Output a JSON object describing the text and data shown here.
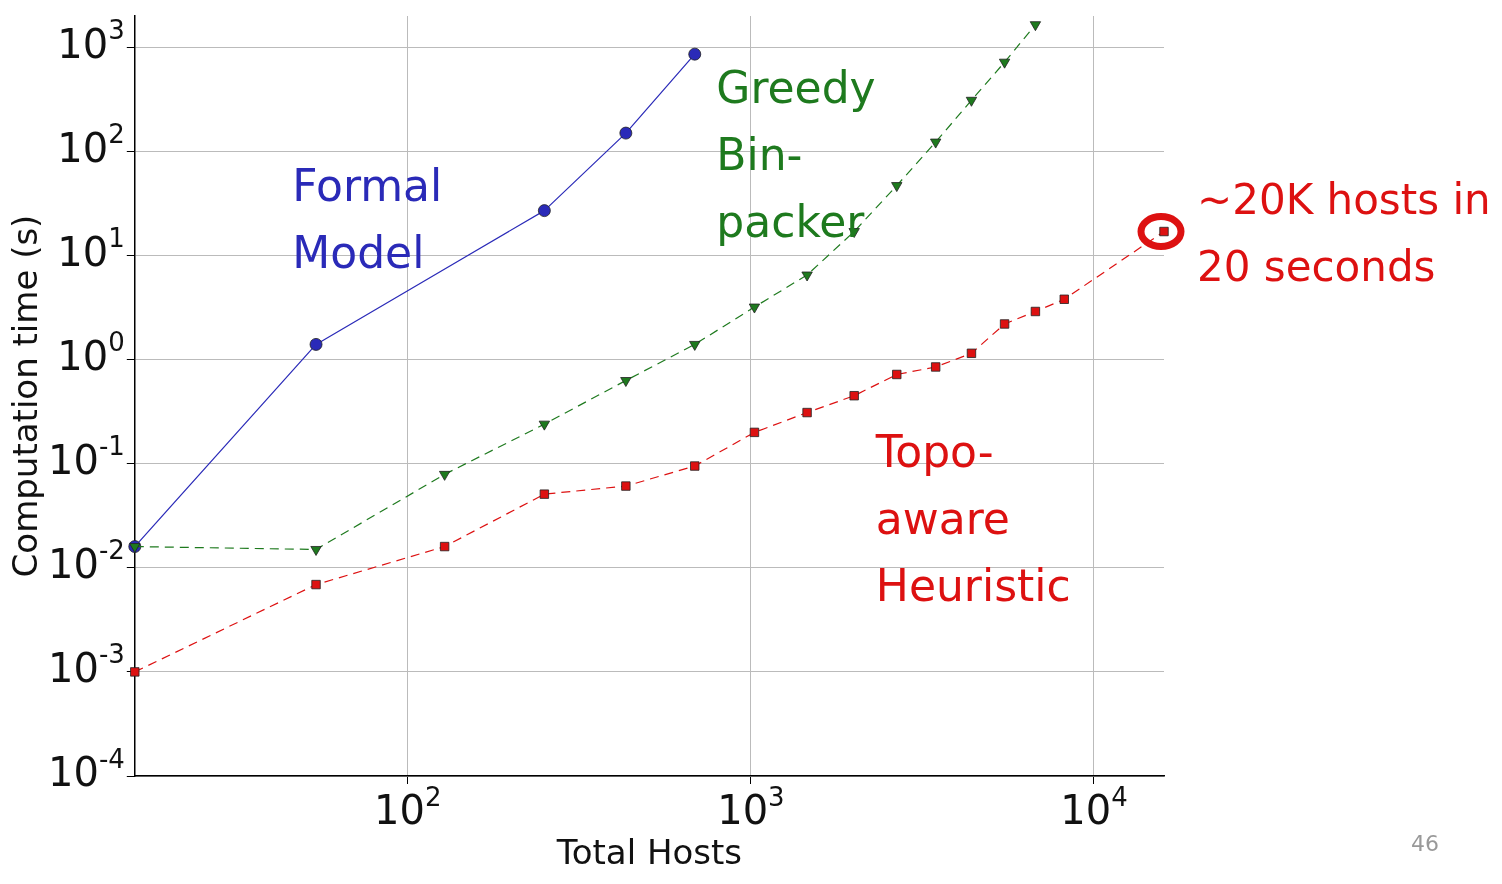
{
  "chart_data": {
    "type": "line",
    "xlabel": "Total Hosts",
    "ylabel": "Computation time (s)",
    "log": "xy",
    "grid": true,
    "legend": false,
    "xlim": [
      16,
      16000
    ],
    "xticks": [
      {
        "value": 100,
        "label": "10$^{2}$"
      },
      {
        "value": 1000,
        "label": "10$^{3}$"
      },
      {
        "value": 10000,
        "label": "10$^{4}$"
      }
    ],
    "ylim": [
      0.0001,
      2000
    ],
    "yticks": [
      {
        "value": 0.0001,
        "label": "10$^{-4}$"
      },
      {
        "value": 0.001,
        "label": "10$^{-3}$"
      },
      {
        "value": 0.01,
        "label": "10$^{-2}$"
      },
      {
        "value": 0.1,
        "label": "10$^{-1}$"
      },
      {
        "value": 1,
        "label": "10$^{0}$"
      },
      {
        "value": 10,
        "label": "10$^{1}$"
      },
      {
        "value": 100,
        "label": "10$^{2}$"
      },
      {
        "value": 1000,
        "label": "10$^{3}$"
      }
    ],
    "series": [
      {
        "name": "Formal Model",
        "color": "#2a2ab8",
        "marker": "circle",
        "line_style": "solid",
        "x": [
          16,
          54,
          250,
          432,
          686
        ],
        "values": [
          0.016,
          1.4,
          27,
          150,
          860
        ]
      },
      {
        "name": "Greedy Bin-packer",
        "color": "#1e7a1e",
        "marker": "triangle",
        "line_style": "dashed",
        "x": [
          16,
          54,
          128,
          250,
          432,
          686,
          1024,
          1458,
          2000,
          2662,
          3456,
          4394,
          5488,
          6750
        ],
        "values": [
          0.016,
          0.015,
          0.079,
          0.24,
          0.63,
          1.4,
          3.2,
          6.5,
          17,
          47,
          123,
          310,
          720,
          1650
        ]
      },
      {
        "name": "Topo-aware Heuristic",
        "color": "#dd1111",
        "marker": "square",
        "line_style": "dashed",
        "x": [
          16,
          54,
          128,
          250,
          432,
          686,
          1024,
          1458,
          2000,
          2662,
          3456,
          4394,
          5488,
          6750,
          8192,
          16000
        ],
        "values": [
          0.001,
          0.0069,
          0.016,
          0.051,
          0.061,
          0.095,
          0.2,
          0.31,
          0.45,
          0.72,
          0.85,
          1.15,
          2.2,
          2.9,
          3.8,
          17
        ]
      }
    ],
    "annotations": [
      {
        "text": "~20K hosts in 20 seconds",
        "x": 16000,
        "y": 17
      },
      "46"
    ]
  }
}
